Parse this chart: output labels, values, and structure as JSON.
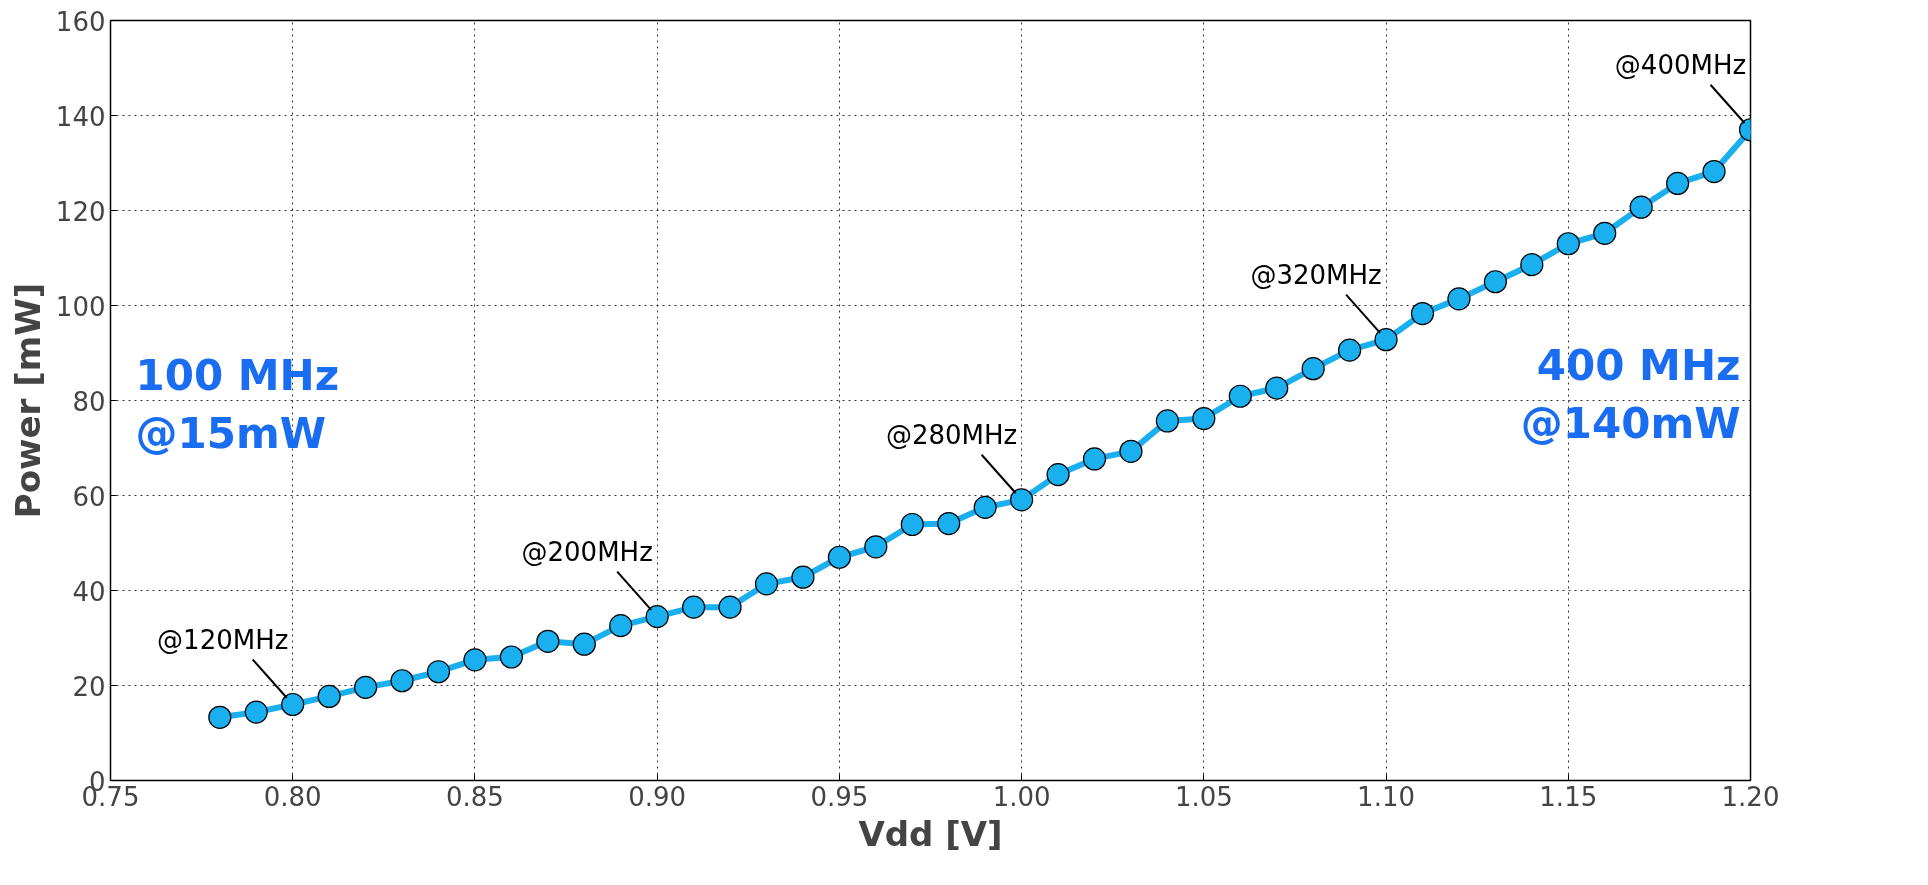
{
  "chart_data": {
    "type": "line",
    "xlabel": "Vdd [V]",
    "ylabel": "Power [mW]",
    "x": [
      0.78,
      0.79,
      0.8,
      0.81,
      0.82,
      0.83,
      0.84,
      0.85,
      0.86,
      0.87,
      0.88,
      0.89,
      0.9,
      0.91,
      0.92,
      0.93,
      0.94,
      0.95,
      0.96,
      0.97,
      0.98,
      0.99,
      1.0,
      1.01,
      1.02,
      1.03,
      1.04,
      1.05,
      1.06,
      1.07,
      1.08,
      1.09,
      1.1,
      1.11,
      1.12,
      1.13,
      1.14,
      1.15,
      1.16,
      1.17,
      1.18,
      1.19,
      1.2
    ],
    "series": [
      {
        "color": "#1ab0f0",
        "values": [
          13.3,
          14.4,
          16,
          17.7,
          19.6,
          21,
          22.9,
          25.4,
          26,
          29.3,
          28.7,
          32.6,
          34.5,
          36.5,
          36.5,
          41.4,
          42.8,
          47,
          49.2,
          53.9,
          54.1,
          57.5,
          59.1,
          64.4,
          67.7,
          69.3,
          75.7,
          76.2,
          80.9,
          82.6,
          86.7,
          90.6,
          92.8,
          98.3,
          101.4,
          105,
          108.6,
          113,
          115.2,
          120.7,
          125.7,
          128.2,
          137
        ]
      }
    ],
    "xlim": [
      0.75,
      1.2
    ],
    "xticks": [
      {
        "value": 0.75,
        "label": "0.75"
      },
      {
        "value": 0.8,
        "label": "0.80"
      },
      {
        "value": 0.85,
        "label": "0.85"
      },
      {
        "value": 0.9,
        "label": "0.90"
      },
      {
        "value": 0.95,
        "label": "0.95"
      },
      {
        "value": 1.0,
        "label": "1.00"
      },
      {
        "value": 1.05,
        "label": "1.05"
      },
      {
        "value": 1.1,
        "label": "1.10"
      },
      {
        "value": 1.15,
        "label": "1.15"
      },
      {
        "value": 1.2,
        "label": "1.20"
      }
    ],
    "ylim": [
      0,
      160
    ],
    "yticks": [
      0,
      20,
      40,
      60,
      80,
      100,
      120,
      140,
      160
    ],
    "grid": true,
    "marker": "circle",
    "line_style": "solid",
    "annotations": [
      {
        "text": "@120MHz",
        "x": 0.8,
        "y": 16
      },
      {
        "text": "@200MHz",
        "x": 0.9,
        "y": 34.5
      },
      {
        "text": "@280MHz",
        "x": 1.0,
        "y": 59.1
      },
      {
        "text": "@320MHz",
        "x": 1.1,
        "y": 92.8
      },
      {
        "text": "@400MHz",
        "x": 1.2,
        "y": 137
      },
      "100 MHz\n@15mW",
      "400 MHz\n@140mW"
    ]
  }
}
